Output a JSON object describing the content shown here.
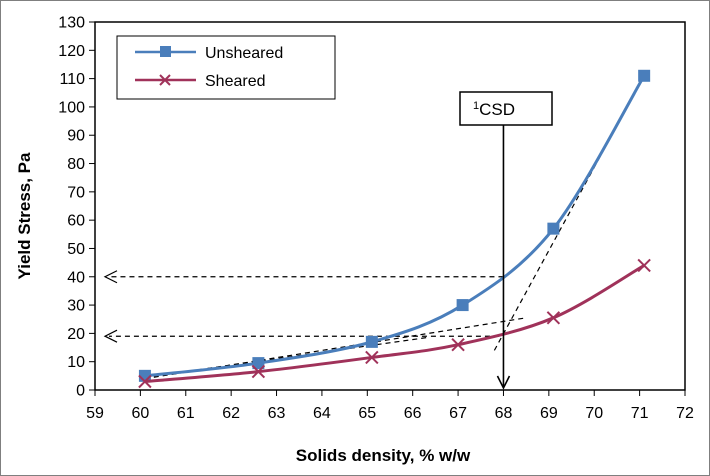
{
  "chart_data": {
    "type": "line",
    "xlabel": "Solids density, % w/w",
    "ylabel": "Yield Stress, Pa",
    "xlim": [
      59,
      72
    ],
    "ylim": [
      0,
      130
    ],
    "x_ticks": [
      59,
      60,
      61,
      62,
      63,
      64,
      65,
      66,
      67,
      68,
      69,
      70,
      71,
      72
    ],
    "y_ticks": [
      0,
      10,
      20,
      30,
      40,
      50,
      60,
      70,
      80,
      90,
      100,
      110,
      120,
      130
    ],
    "grid": "none",
    "legend_position": "top-left",
    "series": [
      {
        "name": "Unsheared",
        "color": "#4a7ebb",
        "marker": "square",
        "x": [
          60.1,
          62.6,
          65.1,
          67.1,
          69.1,
          71.1
        ],
        "y": [
          5,
          9.5,
          17,
          30,
          57,
          111
        ]
      },
      {
        "name": "Sheared",
        "color": "#a0325a",
        "marker": "cross",
        "x": [
          60.1,
          62.6,
          65.1,
          67.0,
          69.1,
          71.1
        ],
        "y": [
          3,
          6.5,
          11.5,
          16,
          25.5,
          44
        ]
      }
    ],
    "annotations": {
      "csd_label_sup": "1",
      "csd_label": "CSD",
      "csd_x": 68,
      "arrow_levels": [
        40,
        19
      ]
    }
  }
}
